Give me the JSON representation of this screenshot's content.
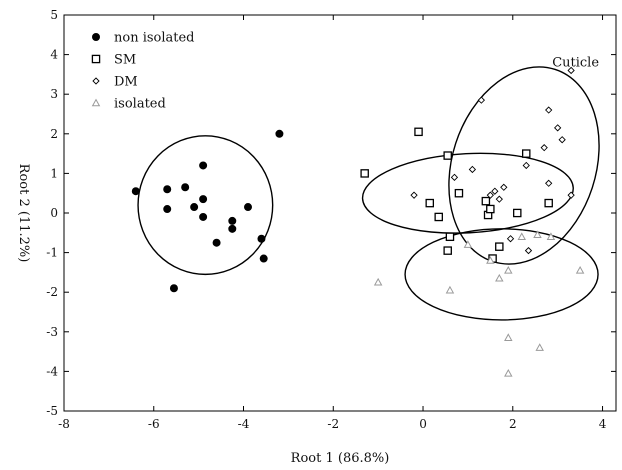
{
  "chart_data": {
    "type": "scatter",
    "xlabel": "Root 1 (86.8%)",
    "ylabel": "Root 2 (11.2%)",
    "xlim": [
      -8,
      4.3
    ],
    "ylim": [
      -5,
      5
    ],
    "xticks": [
      -8,
      -6,
      -4,
      -2,
      0,
      2,
      4
    ],
    "yticks": [
      -5,
      -4,
      -3,
      -2,
      -1,
      0,
      1,
      2,
      3,
      4,
      5
    ],
    "grid": false,
    "legend_position": "top-left",
    "annotations": [
      {
        "text": "Cuticle",
        "x": 3.4,
        "y": 3.7
      }
    ],
    "series": [
      {
        "name": "non isolated",
        "marker": "filled-circle",
        "color": "#000000",
        "points": [
          [
            -6.4,
            0.55
          ],
          [
            -5.7,
            0.6
          ],
          [
            -5.7,
            0.1
          ],
          [
            -5.55,
            -1.9
          ],
          [
            -5.3,
            0.65
          ],
          [
            -5.1,
            0.15
          ],
          [
            -4.9,
            1.2
          ],
          [
            -4.9,
            0.35
          ],
          [
            -4.9,
            -0.1
          ],
          [
            -4.6,
            -0.75
          ],
          [
            -4.25,
            -0.2
          ],
          [
            -4.25,
            -0.4
          ],
          [
            -3.9,
            0.15
          ],
          [
            -3.6,
            -0.65
          ],
          [
            -3.55,
            -1.15
          ],
          [
            -3.2,
            2.0
          ]
        ]
      },
      {
        "name": "SM",
        "marker": "open-square",
        "color": "#000000",
        "points": [
          [
            -1.3,
            1.0
          ],
          [
            -0.1,
            2.05
          ],
          [
            0.15,
            0.25
          ],
          [
            0.35,
            -0.1
          ],
          [
            0.55,
            1.45
          ],
          [
            0.6,
            -0.6
          ],
          [
            0.55,
            -0.95
          ],
          [
            0.8,
            0.5
          ],
          [
            1.4,
            0.3
          ],
          [
            1.45,
            -0.05
          ],
          [
            1.5,
            0.1
          ],
          [
            1.55,
            -1.15
          ],
          [
            1.7,
            -0.85
          ],
          [
            2.1,
            0.0
          ],
          [
            2.3,
            1.5
          ],
          [
            2.8,
            0.25
          ]
        ]
      },
      {
        "name": "DM",
        "marker": "open-diamond",
        "color": "#000000",
        "points": [
          [
            1.3,
            2.85
          ],
          [
            2.8,
            2.6
          ],
          [
            3.3,
            3.6
          ],
          [
            3.0,
            2.15
          ],
          [
            2.7,
            1.65
          ],
          [
            2.3,
            1.2
          ],
          [
            1.1,
            1.1
          ],
          [
            0.7,
            0.9
          ],
          [
            -0.2,
            0.45
          ],
          [
            1.5,
            0.45
          ],
          [
            1.6,
            0.55
          ],
          [
            1.8,
            0.65
          ],
          [
            1.7,
            0.35
          ],
          [
            2.8,
            0.75
          ],
          [
            3.1,
            1.85
          ],
          [
            3.3,
            0.45
          ],
          [
            1.95,
            -0.65
          ],
          [
            2.35,
            -0.95
          ]
        ]
      },
      {
        "name": "isolated",
        "marker": "open-triangle",
        "color": "#9a9a9a",
        "points": [
          [
            -1.0,
            -1.75
          ],
          [
            0.6,
            -1.95
          ],
          [
            1.0,
            -0.8
          ],
          [
            1.5,
            -1.2
          ],
          [
            1.7,
            -1.65
          ],
          [
            1.9,
            -1.45
          ],
          [
            2.2,
            -0.6
          ],
          [
            2.55,
            -0.55
          ],
          [
            2.85,
            -0.6
          ],
          [
            3.5,
            -1.45
          ],
          [
            1.9,
            -3.15
          ],
          [
            2.6,
            -3.4
          ],
          [
            1.9,
            -4.05
          ]
        ]
      }
    ],
    "ellipses": [
      {
        "group": "non isolated",
        "cx": -4.85,
        "cy": 0.2,
        "rx": 1.5,
        "ry": 1.75,
        "angle_deg": 0
      },
      {
        "group": "SM",
        "cx": 1.0,
        "cy": 0.5,
        "rx": 2.35,
        "ry": 1.0,
        "angle_deg": -3
      },
      {
        "group": "DM",
        "cx": 2.25,
        "cy": 1.2,
        "rx": 1.6,
        "ry": 2.55,
        "angle_deg": 18
      },
      {
        "group": "isolated",
        "cx": 1.75,
        "cy": -1.55,
        "rx": 2.15,
        "ry": 1.15,
        "angle_deg": 0
      }
    ]
  }
}
